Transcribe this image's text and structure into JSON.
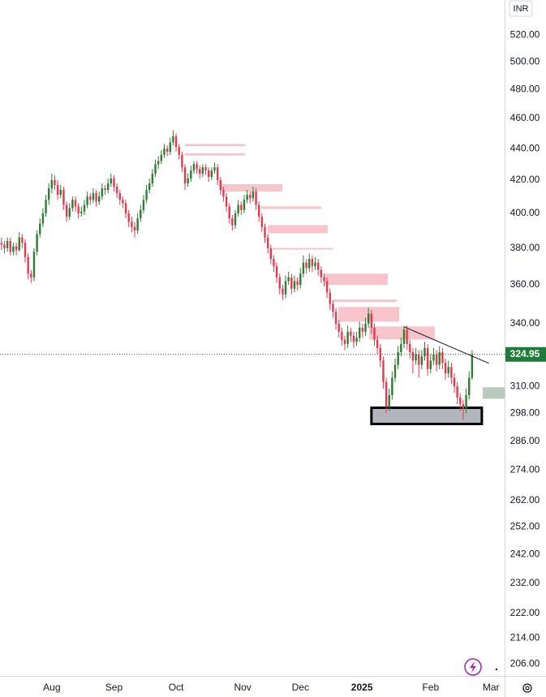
{
  "chart_data": {
    "type": "candlestick",
    "currency": "INR",
    "log": true,
    "up_color": "#2e7d32",
    "down_color": "#e53950",
    "ylim": [
      202.4,
      547.6
    ],
    "yticks": [
      {
        "value": 520,
        "label": "520.00"
      },
      {
        "value": 500,
        "label": "500.00"
      },
      {
        "value": 480,
        "label": "480.00"
      },
      {
        "value": 460,
        "label": "460.00"
      },
      {
        "value": 440,
        "label": "440.00"
      },
      {
        "value": 420,
        "label": "420.00"
      },
      {
        "value": 400,
        "label": "400.00"
      },
      {
        "value": 380,
        "label": "380.00"
      },
      {
        "value": 360,
        "label": "360.00"
      },
      {
        "value": 340,
        "label": "340.00"
      },
      {
        "value": 310,
        "label": "310.00"
      },
      {
        "value": 298,
        "label": "298.00"
      },
      {
        "value": 286,
        "label": "286.00"
      },
      {
        "value": 274,
        "label": "274.00"
      },
      {
        "value": 262,
        "label": "262.00"
      },
      {
        "value": 252,
        "label": "252.00"
      },
      {
        "value": 242,
        "label": "242.00"
      },
      {
        "value": 232,
        "label": "232.00"
      },
      {
        "value": 222,
        "label": "222.00"
      },
      {
        "value": 214,
        "label": "214.00"
      },
      {
        "value": 206,
        "label": "206.00"
      }
    ],
    "xlim": [
      -0.5,
      170
    ],
    "xticks": [
      {
        "value": 17,
        "label": "Aug"
      },
      {
        "value": 38,
        "label": "Sep"
      },
      {
        "value": 59,
        "label": "Oct"
      },
      {
        "value": 81.5,
        "label": "Nov"
      },
      {
        "value": 101,
        "label": "Dec"
      },
      {
        "value": 121.8,
        "label": "2025"
      },
      {
        "value": 145,
        "label": "Feb"
      },
      {
        "value": 165.4,
        "label": "Mar"
      }
    ],
    "ohlc": [
      [
        383,
        386,
        379,
        382
      ],
      [
        382,
        384,
        377,
        380
      ],
      [
        380,
        386,
        378,
        384
      ],
      [
        384,
        386,
        376,
        378
      ],
      [
        378,
        383,
        376,
        381
      ],
      [
        381,
        383,
        376,
        379
      ],
      [
        379,
        389,
        378,
        386
      ],
      [
        386,
        388,
        380,
        383
      ],
      [
        383,
        385,
        372,
        375
      ],
      [
        375,
        377,
        363,
        366
      ],
      [
        366,
        368,
        361,
        364
      ],
      [
        364,
        380,
        362,
        378
      ],
      [
        378,
        390,
        376,
        388
      ],
      [
        388,
        397,
        386,
        394
      ],
      [
        394,
        403,
        392,
        400
      ],
      [
        400,
        411,
        398,
        408
      ],
      [
        408,
        418,
        405,
        415
      ],
      [
        415,
        424,
        412,
        420
      ],
      [
        420,
        423,
        414,
        417
      ],
      [
        417,
        420,
        408,
        411
      ],
      [
        411,
        417,
        409,
        414
      ],
      [
        414,
        416,
        402,
        405
      ],
      [
        405,
        407,
        395,
        398
      ],
      [
        398,
        406,
        396,
        403
      ],
      [
        403,
        410,
        401,
        408
      ],
      [
        408,
        410,
        401,
        404
      ],
      [
        404,
        406,
        397,
        400
      ],
      [
        400,
        404,
        398,
        401
      ],
      [
        401,
        408,
        399,
        405
      ],
      [
        405,
        413,
        403,
        410
      ],
      [
        410,
        412,
        405,
        408
      ],
      [
        408,
        415,
        406,
        412
      ],
      [
        412,
        414,
        404,
        407
      ],
      [
        407,
        413,
        405,
        410
      ],
      [
        410,
        418,
        408,
        415
      ],
      [
        415,
        417,
        411,
        414
      ],
      [
        414,
        421,
        412,
        418
      ],
      [
        418,
        424,
        416,
        421
      ],
      [
        421,
        423,
        413,
        416
      ],
      [
        416,
        418,
        409,
        412
      ],
      [
        412,
        414,
        405,
        408
      ],
      [
        408,
        410,
        403,
        406
      ],
      [
        406,
        408,
        397,
        400
      ],
      [
        400,
        402,
        392,
        395
      ],
      [
        395,
        398,
        389,
        392
      ],
      [
        392,
        395,
        386,
        390
      ],
      [
        390,
        400,
        388,
        397
      ],
      [
        397,
        405,
        395,
        402
      ],
      [
        402,
        411,
        400,
        408
      ],
      [
        408,
        417,
        406,
        414
      ],
      [
        414,
        421,
        412,
        418
      ],
      [
        418,
        427,
        416,
        424
      ],
      [
        424,
        433,
        422,
        430
      ],
      [
        430,
        435,
        427,
        432
      ],
      [
        432,
        439,
        430,
        436
      ],
      [
        436,
        443,
        434,
        440
      ],
      [
        440,
        442,
        435,
        438
      ],
      [
        438,
        447,
        436,
        444
      ],
      [
        444,
        452,
        442,
        448
      ],
      [
        448,
        450,
        438,
        441
      ],
      [
        441,
        443,
        433,
        436
      ],
      [
        436,
        438,
        425,
        428
      ],
      [
        428,
        430,
        414,
        418
      ],
      [
        418,
        424,
        416,
        421
      ],
      [
        421,
        429,
        419,
        426
      ],
      [
        426,
        432,
        424,
        430
      ],
      [
        430,
        432,
        424,
        427
      ],
      [
        427,
        429,
        421,
        424
      ],
      [
        424,
        430,
        422,
        428
      ],
      [
        428,
        430,
        423,
        426
      ],
      [
        426,
        428,
        419,
        422
      ],
      [
        422,
        428,
        420,
        426
      ],
      [
        426,
        431,
        424,
        428
      ],
      [
        428,
        430,
        417,
        420
      ],
      [
        420,
        422,
        411,
        414
      ],
      [
        414,
        416,
        407,
        410
      ],
      [
        410,
        412,
        401,
        404
      ],
      [
        404,
        406,
        394,
        397
      ],
      [
        397,
        399,
        390,
        393
      ],
      [
        393,
        402,
        391,
        400
      ],
      [
        400,
        408,
        398,
        405
      ],
      [
        405,
        407,
        399,
        402
      ],
      [
        402,
        411,
        400,
        408
      ],
      [
        408,
        414,
        406,
        411
      ],
      [
        411,
        413,
        406,
        409
      ],
      [
        409,
        416,
        407,
        413
      ],
      [
        413,
        415,
        402,
        405
      ],
      [
        405,
        407,
        395,
        398
      ],
      [
        398,
        400,
        389,
        392
      ],
      [
        392,
        394,
        383,
        386
      ],
      [
        386,
        388,
        377,
        380
      ],
      [
        380,
        382,
        371,
        374
      ],
      [
        374,
        376,
        367,
        370
      ],
      [
        370,
        372,
        361,
        364
      ],
      [
        364,
        366,
        355,
        358
      ],
      [
        358,
        360,
        352,
        355
      ],
      [
        355,
        365,
        353,
        362
      ],
      [
        362,
        367,
        360,
        364
      ],
      [
        364,
        366,
        355,
        358
      ],
      [
        358,
        365,
        356,
        362
      ],
      [
        362,
        364,
        357,
        360
      ],
      [
        360,
        369,
        358,
        366
      ],
      [
        366,
        376,
        364,
        372
      ],
      [
        372,
        374,
        366,
        369
      ],
      [
        369,
        377,
        367,
        374
      ],
      [
        374,
        376,
        367,
        370
      ],
      [
        370,
        375,
        368,
        372
      ],
      [
        372,
        374,
        365,
        368
      ],
      [
        368,
        370,
        361,
        364
      ],
      [
        364,
        366,
        359,
        362
      ],
      [
        362,
        364,
        353,
        356
      ],
      [
        356,
        358,
        347,
        350
      ],
      [
        350,
        352,
        343,
        346
      ],
      [
        346,
        348,
        337,
        340
      ],
      [
        340,
        342,
        333,
        336
      ],
      [
        336,
        338,
        329,
        332
      ],
      [
        332,
        334,
        327,
        330
      ],
      [
        330,
        339,
        328,
        336
      ],
      [
        336,
        338,
        331,
        334
      ],
      [
        334,
        336,
        328,
        331
      ],
      [
        331,
        336,
        329,
        333
      ],
      [
        333,
        341,
        331,
        338
      ],
      [
        338,
        340,
        333,
        336
      ],
      [
        336,
        343,
        334,
        340
      ],
      [
        340,
        348,
        338,
        345
      ],
      [
        345,
        347,
        335,
        338
      ],
      [
        338,
        340,
        329,
        332
      ],
      [
        332,
        334,
        325,
        328
      ],
      [
        328,
        330,
        319,
        322
      ],
      [
        322,
        324,
        309,
        312
      ],
      [
        312,
        314,
        298,
        301
      ],
      [
        301,
        309,
        299,
        306
      ],
      [
        306,
        317,
        304,
        314
      ],
      [
        314,
        323,
        312,
        320
      ],
      [
        320,
        329,
        318,
        326
      ],
      [
        326,
        333,
        324,
        330
      ],
      [
        330,
        339,
        328,
        337
      ],
      [
        337,
        339,
        327,
        330
      ],
      [
        330,
        332,
        323,
        326
      ],
      [
        326,
        328,
        316,
        322
      ],
      [
        322,
        328,
        320,
        325
      ],
      [
        325,
        327,
        314,
        320
      ],
      [
        320,
        327,
        318,
        324
      ],
      [
        324,
        331,
        322,
        328
      ],
      [
        328,
        330,
        315,
        318
      ],
      [
        318,
        325,
        316,
        322
      ],
      [
        322,
        328,
        320,
        325
      ],
      [
        325,
        327,
        317,
        320
      ],
      [
        320,
        329,
        318,
        326
      ],
      [
        326,
        328,
        318,
        321
      ],
      [
        321,
        323,
        313,
        316
      ],
      [
        316,
        322,
        314,
        319
      ],
      [
        319,
        321,
        311,
        314
      ],
      [
        314,
        316,
        307,
        310
      ],
      [
        310,
        312,
        302,
        305
      ],
      [
        305,
        307,
        299,
        302
      ],
      [
        302,
        304,
        295,
        300
      ],
      [
        300,
        309,
        298,
        306
      ],
      [
        306,
        317,
        304,
        314
      ],
      [
        314,
        327,
        313,
        324.95
      ]
    ],
    "last_price": 324.95,
    "last_price_color": "#1e7b3a",
    "zones": [
      {
        "x0": 62.0,
        "x1": 82.3,
        "low": 441.5,
        "high": 443,
        "color": "#f7c5cb"
      },
      {
        "x0": 62.0,
        "x1": 82.3,
        "low": 435.5,
        "high": 437,
        "color": "#f7c5cb"
      },
      {
        "x0": 74.1,
        "x1": 94.9,
        "low": 413,
        "high": 417.5,
        "color": "#f7c5cb"
      },
      {
        "x0": 87.8,
        "x1": 108.1,
        "low": 402.6,
        "high": 404.1,
        "color": "#f7c5cb"
      },
      {
        "x0": 90.0,
        "x1": 110.2,
        "low": 388.4,
        "high": 393.1,
        "color": "#f7c5cb"
      },
      {
        "x0": 91.6,
        "x1": 111.9,
        "low": 379.2,
        "high": 380.1,
        "color": "#f7c5cb"
      },
      {
        "x0": 109.1,
        "x1": 130.5,
        "low": 360,
        "high": 366,
        "color": "#f7c5cb"
      },
      {
        "x0": 112.4,
        "x1": 133.5,
        "low": 351,
        "high": 352.3,
        "color": "#f7c5cb"
      },
      {
        "x0": 113.8,
        "x1": 134.4,
        "low": 341,
        "high": 348.5,
        "color": "#f7c5cb"
      },
      {
        "x0": 124.2,
        "x1": 146.4,
        "low": 332.2,
        "high": 338.6,
        "color": "#f7c5cb"
      },
      {
        "x0": 125.0,
        "x1": 162.3,
        "low": 293.3,
        "high": 300.4,
        "color": "#b2b5be",
        "border": "#000000"
      },
      {
        "x0": 162.6,
        "x1": 170,
        "low": 304.4,
        "high": 309.6,
        "color": "#b9cbbf"
      }
    ],
    "trendline": {
      "x": [
        136.2,
        164.7
      ],
      "y": [
        338.3,
        320.7
      ],
      "color": "#131722"
    }
  }
}
